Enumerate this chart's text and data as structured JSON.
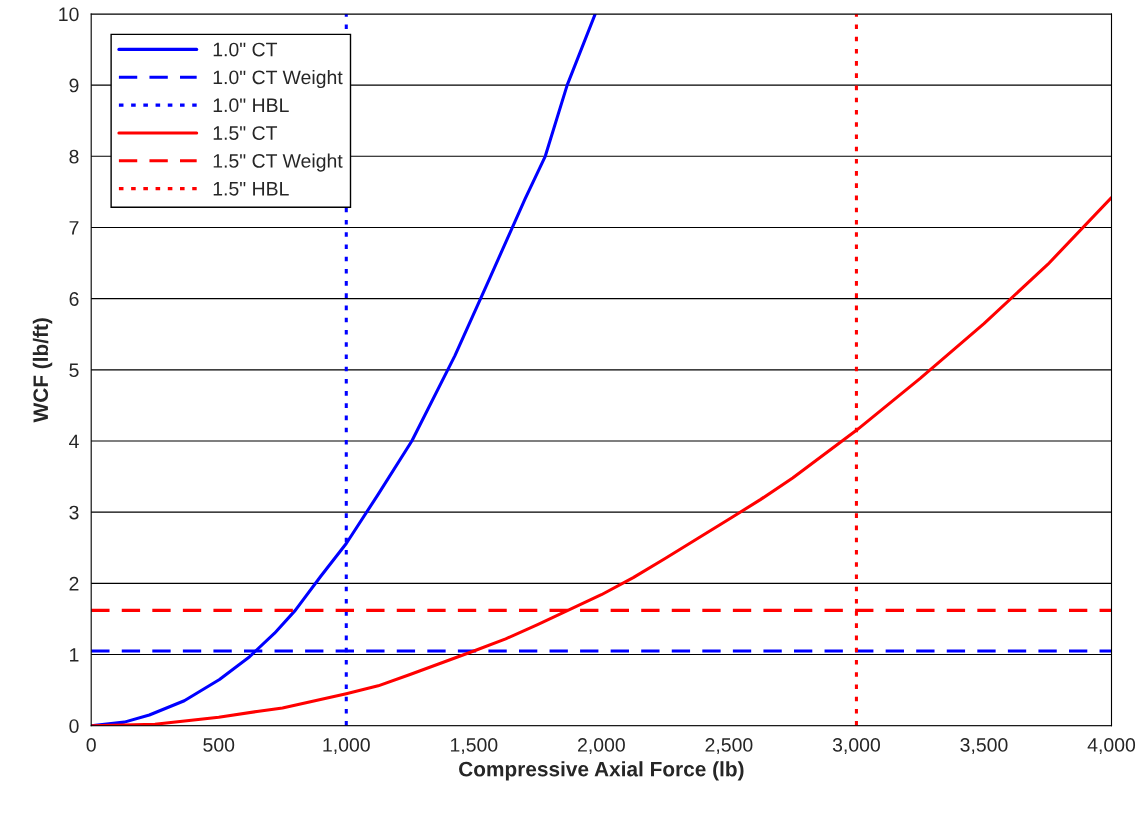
{
  "chart_data": {
    "type": "line",
    "xlabel": "Compressive Axial Force (lb)",
    "ylabel": "WCF (lb/ft)",
    "xlim": [
      0,
      4000
    ],
    "ylim": [
      0,
      10
    ],
    "xticks": [
      0,
      500,
      {
        "value": 1000,
        "label": "1,000"
      },
      {
        "value": 1500,
        "label": "1,500"
      },
      {
        "value": 2000,
        "label": "2,000"
      },
      {
        "value": 2500,
        "label": "2,500"
      },
      {
        "value": 3000,
        "label": "3,000"
      },
      {
        "value": 3500,
        "label": "3,500"
      },
      {
        "value": 4000,
        "label": "4,000"
      }
    ],
    "yticks": [
      0,
      1,
      2,
      3,
      4,
      5,
      6,
      7,
      8,
      9,
      10
    ],
    "grid": "y",
    "legend": "top left",
    "marker": "none",
    "series": [
      {
        "name": "1.0\" CT",
        "color": "#0000ff",
        "line_style": "solid",
        "x": [
          0,
          130,
          228,
          365,
          503,
          621,
          719,
          800,
          900,
          1000,
          1125,
          1257,
          1426,
          1564,
          1701,
          1780,
          1866,
          1976
        ],
        "values": [
          0,
          0.05,
          0.15,
          0.35,
          0.65,
          0.97,
          1.3,
          1.62,
          2.1,
          2.56,
          3.25,
          4,
          5.2,
          6.3,
          7.4,
          8,
          9,
          10
        ]
      },
      {
        "name": "1.0\" CT Weight",
        "color": "#0000ff",
        "line_style": "dashed",
        "x": [
          0,
          4000
        ],
        "values": [
          1.05,
          1.05
        ]
      },
      {
        "name": "1.0\" HBL",
        "color": "#0000ff",
        "line_style": "dotted",
        "x": [
          1000,
          1000
        ],
        "values": [
          0,
          10
        ]
      },
      {
        "name": "1.5\" CT",
        "color": "#ff0000",
        "line_style": "solid",
        "x": [
          0,
          250,
          500,
          650,
          750,
          1000,
          1125,
          1250,
          1500,
          1625,
          1750,
          2000,
          2125,
          2250,
          2500,
          2625,
          2750,
          3000,
          3250,
          3500,
          3750,
          4000
        ],
        "values": [
          0,
          0.02,
          0.12,
          0.2,
          0.25,
          0.45,
          0.56,
          0.72,
          1.05,
          1.22,
          1.42,
          1.84,
          2.08,
          2.35,
          2.9,
          3.18,
          3.48,
          4.15,
          4.88,
          5.65,
          6.48,
          7.42
        ]
      },
      {
        "name": "1.5\" CT Weight",
        "color": "#ff0000",
        "line_style": "dashed",
        "x": [
          0,
          4000
        ],
        "values": [
          1.62,
          1.62
        ]
      },
      {
        "name": "1.5\" HBL",
        "color": "#ff0000",
        "line_style": "dotted",
        "x": [
          3000,
          3000
        ],
        "values": [
          0,
          10
        ]
      }
    ]
  }
}
